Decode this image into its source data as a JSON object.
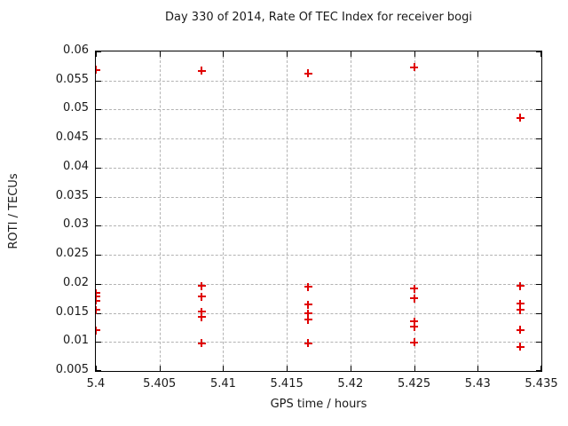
{
  "window": {
    "background": "#ffffff"
  },
  "chart_data": {
    "type": "scatter",
    "title": "Day 330 of 2014, Rate Of TEC Index for receiver bogi",
    "xlabel": "GPS time / hours",
    "ylabel": "ROTI / TECUs",
    "xlim": [
      5.4,
      5.435
    ],
    "ylim": [
      0.005,
      0.06
    ],
    "xticks": [
      5.4,
      5.405,
      5.41,
      5.415,
      5.42,
      5.425,
      5.43,
      5.435
    ],
    "xtick_labels": [
      "5.4",
      "5.405",
      "5.41",
      "5.415",
      "5.42",
      "5.425",
      "5.43",
      "5.435"
    ],
    "yticks": [
      0.005,
      0.01,
      0.015,
      0.02,
      0.025,
      0.03,
      0.035,
      0.04,
      0.045,
      0.05,
      0.055,
      0.06
    ],
    "ytick_labels": [
      "0.005",
      "0.01",
      "0.015",
      "0.02",
      "0.025",
      "0.03",
      "0.035",
      "0.04",
      "0.045",
      "0.05",
      "0.055",
      "0.06"
    ],
    "grid": true,
    "legend": null,
    "marker": "plus-marker",
    "colors": {
      "marker": "#e00000",
      "grid": "#b3b3b3",
      "border": "#000000",
      "text": "#1a1a1a",
      "background": "#ffffff"
    },
    "series": [
      {
        "name": "ROTI",
        "points": [
          [
            5.4,
            0.0568
          ],
          [
            5.4,
            0.0184
          ],
          [
            5.4,
            0.0178
          ],
          [
            5.4,
            0.0171
          ],
          [
            5.4,
            0.0155
          ],
          [
            5.4,
            0.012
          ],
          [
            5.40833,
            0.0567
          ],
          [
            5.40833,
            0.0196
          ],
          [
            5.40833,
            0.0178
          ],
          [
            5.40833,
            0.0152
          ],
          [
            5.40833,
            0.0143
          ],
          [
            5.40833,
            0.0098
          ],
          [
            5.41667,
            0.0562
          ],
          [
            5.41667,
            0.0195
          ],
          [
            5.41667,
            0.0164
          ],
          [
            5.41667,
            0.0149
          ],
          [
            5.41667,
            0.0138
          ],
          [
            5.41667,
            0.0098
          ],
          [
            5.425,
            0.0573
          ],
          [
            5.425,
            0.0192
          ],
          [
            5.425,
            0.0175
          ],
          [
            5.425,
            0.0135
          ],
          [
            5.425,
            0.0126
          ],
          [
            5.425,
            0.0099
          ],
          [
            5.43333,
            0.0486
          ],
          [
            5.43333,
            0.0196
          ],
          [
            5.43333,
            0.0166
          ],
          [
            5.43333,
            0.0155
          ],
          [
            5.43333,
            0.0121
          ],
          [
            5.43333,
            0.0092
          ]
        ]
      }
    ]
  }
}
